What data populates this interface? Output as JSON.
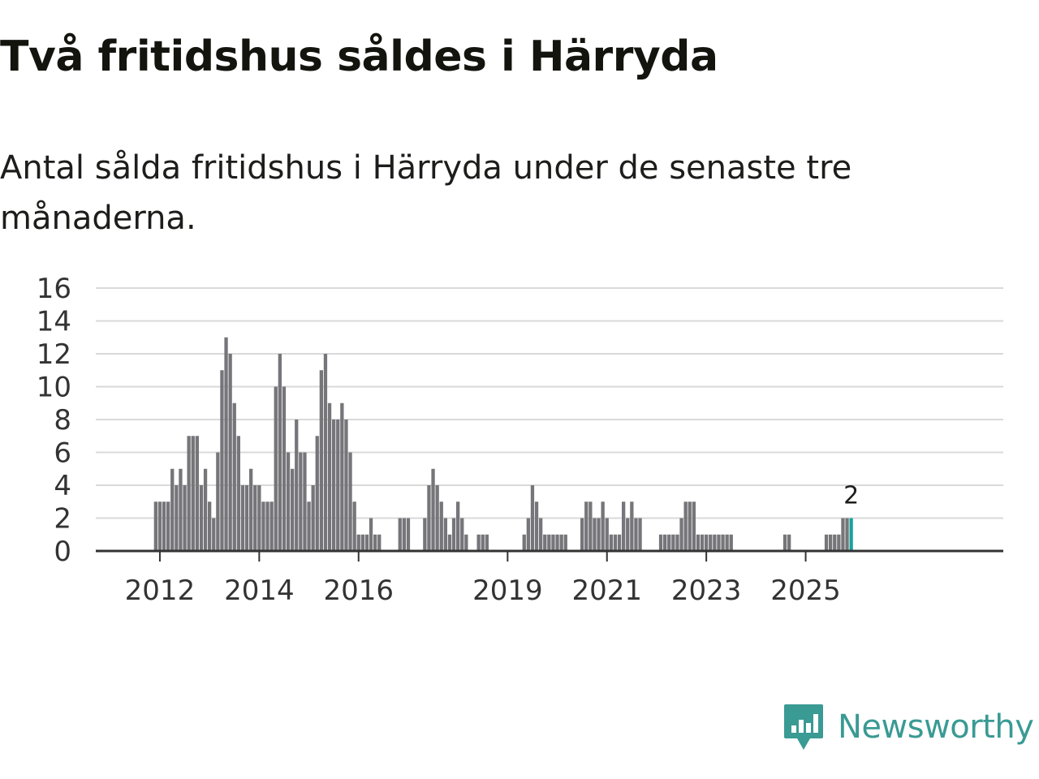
{
  "header": {
    "title": "Två fritidshus såldes i Härryda",
    "subtitle": "Antal sålda fritidshus i Härryda under de senaste tre månaderna."
  },
  "logo": {
    "text": "Newsworthy",
    "icon": "newsworthy-chat-bars-icon",
    "color": "#3a9a94"
  },
  "colors": {
    "bar": "#75757a",
    "highlight": "#19a39c",
    "grid": "#d9d9d9",
    "axis": "#333333"
  },
  "chart_data": {
    "type": "bar",
    "title": "Två fritidshus såldes i Härryda",
    "subtitle": "Antal sålda fritidshus i Härryda under de senaste tre månaderna.",
    "x_label": "",
    "y_label": "",
    "ylim": [
      0,
      16
    ],
    "y_ticks": [
      0,
      2,
      4,
      6,
      8,
      10,
      12,
      14,
      16
    ],
    "x_ticks": [
      "2012",
      "2014",
      "2016",
      "2019",
      "2021",
      "2023",
      "2025"
    ],
    "x_start": "2011-03",
    "grid": true,
    "legend": "none",
    "highlight_label": "2",
    "values": [
      0,
      0,
      0,
      0,
      0,
      0,
      0,
      0,
      0,
      3,
      3,
      3,
      3,
      5,
      4,
      5,
      4,
      7,
      7,
      7,
      4,
      5,
      3,
      2,
      6,
      11,
      13,
      12,
      9,
      7,
      4,
      4,
      5,
      4,
      4,
      3,
      3,
      3,
      10,
      12,
      10,
      6,
      5,
      8,
      6,
      6,
      3,
      4,
      7,
      11,
      12,
      9,
      8,
      8,
      9,
      8,
      6,
      3,
      1,
      1,
      1,
      2,
      1,
      1,
      0,
      0,
      0,
      0,
      2,
      2,
      2,
      0,
      0,
      0,
      2,
      4,
      5,
      4,
      3,
      2,
      1,
      2,
      3,
      2,
      1,
      0,
      0,
      1,
      1,
      1,
      0,
      0,
      0,
      0,
      0,
      0,
      0,
      0,
      1,
      2,
      4,
      3,
      2,
      1,
      1,
      1,
      1,
      1,
      1,
      0,
      0,
      0,
      2,
      3,
      3,
      2,
      2,
      3,
      2,
      1,
      1,
      1,
      3,
      2,
      3,
      2,
      2,
      0,
      0,
      0,
      0,
      1,
      1,
      1,
      1,
      1,
      2,
      3,
      3,
      3,
      1,
      1,
      1,
      1,
      1,
      1,
      1,
      1,
      1,
      0,
      0,
      0,
      0,
      0,
      0,
      0,
      0,
      0,
      0,
      0,
      0,
      1,
      1,
      0,
      0,
      0,
      0,
      0,
      0,
      0,
      0,
      1,
      1,
      1,
      1,
      2,
      2,
      2
    ]
  }
}
